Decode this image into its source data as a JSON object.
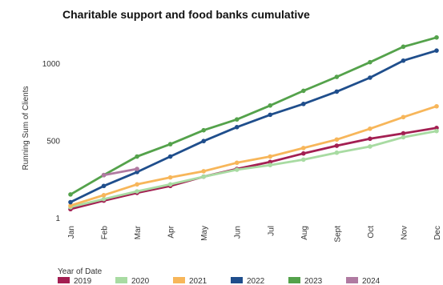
{
  "chart_data": {
    "type": "line",
    "title": "Charitable support and food banks cumulative",
    "xlabel": "",
    "ylabel": "Running Sum of Clients",
    "categories": [
      "Jan",
      "Feb",
      "Mar",
      "Apr",
      "May",
      "Jun",
      "Jul",
      "Aug",
      "Sept",
      "Oct",
      "Nov",
      "Dec"
    ],
    "y_ticks": [
      {
        "value": 1,
        "label": "1"
      },
      {
        "value": 500,
        "label": "500"
      },
      {
        "value": 1000,
        "label": "1000"
      }
    ],
    "ylim": [
      0,
      1180
    ],
    "grid": false,
    "legend": {
      "title": "Year of Date",
      "position": "bottom-left"
    },
    "series": [
      {
        "name": "2019",
        "color": "#a31f52",
        "values": [
          35,
          90,
          140,
          185,
          245,
          295,
          340,
          395,
          445,
          490,
          525,
          560
        ]
      },
      {
        "name": "2020",
        "color": "#a8dba2",
        "values": [
          48,
          100,
          150,
          195,
          245,
          290,
          320,
          355,
          400,
          440,
          500,
          540
        ]
      },
      {
        "name": "2021",
        "color": "#f7b65a",
        "values": [
          58,
          125,
          195,
          240,
          280,
          335,
          375,
          430,
          485,
          555,
          630,
          700
        ]
      },
      {
        "name": "2022",
        "color": "#1f4e8c",
        "values": [
          80,
          185,
          275,
          375,
          475,
          565,
          645,
          715,
          795,
          885,
          995,
          1060
        ]
      },
      {
        "name": "2023",
        "color": "#54a24b",
        "values": [
          130,
          255,
          375,
          455,
          545,
          615,
          705,
          800,
          890,
          985,
          1085,
          1145
        ]
      },
      {
        "name": "2024",
        "color": "#b07aa1",
        "values": [
          null,
          255,
          295,
          null,
          null,
          null,
          null,
          null,
          null,
          null,
          null,
          null
        ]
      }
    ]
  }
}
